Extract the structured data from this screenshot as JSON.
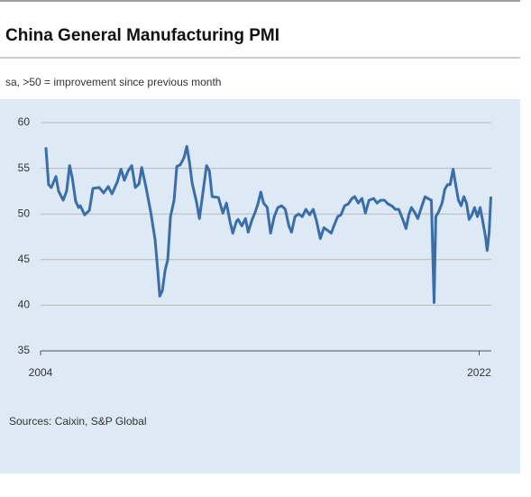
{
  "chart_data": {
    "type": "line",
    "title": "China General Manufacturing PMI",
    "subtitle": "sa, >50 = improvement since previous month",
    "source": "Sources: Caixin, S&P Global",
    "color": "#3b6ea8",
    "grid": true,
    "xlim": [
      2004,
      2022.5
    ],
    "xticks": [
      2004,
      2022
    ],
    "ylim": [
      35,
      60
    ],
    "yticks": [
      35,
      40,
      45,
      50,
      55,
      60
    ],
    "x": [
      2004.22,
      2004.33,
      2004.44,
      2004.63,
      2004.74,
      2004.93,
      2005.07,
      2005.19,
      2005.3,
      2005.44,
      2005.56,
      2005.63,
      2005.81,
      2006.0,
      2006.15,
      2006.41,
      2006.59,
      2006.78,
      2006.93,
      2007.15,
      2007.3,
      2007.44,
      2007.59,
      2007.74,
      2007.89,
      2008.04,
      2008.15,
      2008.33,
      2008.52,
      2008.7,
      2008.81,
      2008.89,
      2009.0,
      2009.11,
      2009.22,
      2009.33,
      2009.48,
      2009.59,
      2009.74,
      2009.89,
      2010.0,
      2010.11,
      2010.22,
      2010.41,
      2010.52,
      2010.67,
      2010.81,
      2010.93,
      2011.04,
      2011.3,
      2011.48,
      2011.63,
      2011.78,
      2011.89,
      2012.04,
      2012.11,
      2012.26,
      2012.41,
      2012.52,
      2012.67,
      2012.81,
      2012.93,
      2013.04,
      2013.15,
      2013.3,
      2013.44,
      2013.59,
      2013.74,
      2013.89,
      2014.04,
      2014.19,
      2014.3,
      2014.44,
      2014.59,
      2014.74,
      2014.89,
      2015.04,
      2015.19,
      2015.33,
      2015.48,
      2015.63,
      2015.78,
      2015.93,
      2016.04,
      2016.19,
      2016.33,
      2016.48,
      2016.63,
      2016.78,
      2016.89,
      2017.04,
      2017.19,
      2017.33,
      2017.48,
      2017.67,
      2017.81,
      2017.96,
      2018.11,
      2018.26,
      2018.41,
      2018.56,
      2018.7,
      2018.85,
      2019.0,
      2019.11,
      2019.22,
      2019.37,
      2019.48,
      2019.63,
      2019.78,
      2019.89,
      2020.04,
      2020.15,
      2020.22,
      2020.33,
      2020.48,
      2020.59,
      2020.7,
      2020.81,
      2020.93,
      2021.04,
      2021.15,
      2021.26,
      2021.37,
      2021.48,
      2021.59,
      2021.7,
      2021.81,
      2021.93,
      2022.04,
      2022.15,
      2022.26,
      2022.33,
      2022.41,
      2022.48
    ],
    "values": [
      57.3,
      53.2,
      52.9,
      54.1,
      52.5,
      51.5,
      52.5,
      55.3,
      54.0,
      51.4,
      50.7,
      50.9,
      49.9,
      50.4,
      52.8,
      52.9,
      52.3,
      53.0,
      52.2,
      53.5,
      54.9,
      53.7,
      54.7,
      55.3,
      52.9,
      53.3,
      55.1,
      52.9,
      50.2,
      47.2,
      43.8,
      41.0,
      41.6,
      43.8,
      45.0,
      49.7,
      51.5,
      55.2,
      55.4,
      56.2,
      57.4,
      55.7,
      53.4,
      51.2,
      49.5,
      52.5,
      55.3,
      54.7,
      51.9,
      51.8,
      50.1,
      51.2,
      49.1,
      47.9,
      49.2,
      49.4,
      48.7,
      49.5,
      48.0,
      49.3,
      50.2,
      51.2,
      52.4,
      51.2,
      50.7,
      47.9,
      49.7,
      50.7,
      50.9,
      50.5,
      48.7,
      48.0,
      49.7,
      50.0,
      49.7,
      50.5,
      49.9,
      50.5,
      49.2,
      47.3,
      48.5,
      48.2,
      47.9,
      48.7,
      49.7,
      49.9,
      50.9,
      51.1,
      51.7,
      51.9,
      51.2,
      51.7,
      50.1,
      51.5,
      51.7,
      51.2,
      51.5,
      51.5,
      51.1,
      50.9,
      50.5,
      50.5,
      49.5,
      48.4,
      49.9,
      50.7,
      50.1,
      49.5,
      50.7,
      51.9,
      51.7,
      51.5,
      40.3,
      49.7,
      50.2,
      51.2,
      52.7,
      53.2,
      53.2,
      54.9,
      53.2,
      51.5,
      50.9,
      51.9,
      51.2,
      49.4,
      49.9,
      50.7,
      49.7,
      50.7,
      49.2,
      47.5,
      46.0,
      48.0,
      51.9
    ]
  }
}
